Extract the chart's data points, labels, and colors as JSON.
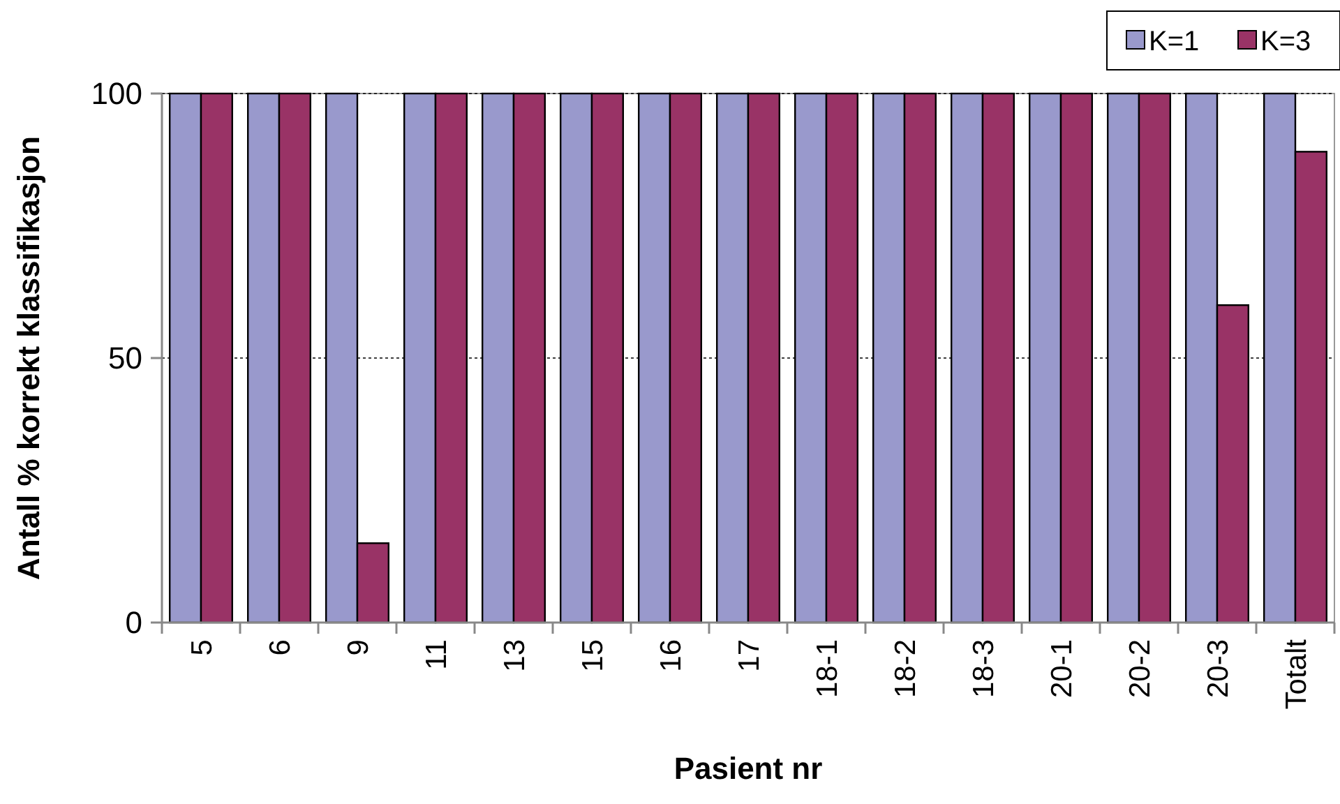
{
  "chart_data": {
    "type": "bar",
    "xlabel": "Pasient nr",
    "ylabel": "Antall % korrekt klassifikasjon",
    "categories": [
      "5",
      "6",
      "9",
      "11",
      "13",
      "15",
      "16",
      "17",
      "18-1",
      "18-2",
      "18-3",
      "20-1",
      "20-2",
      "20-3",
      "Totalt"
    ],
    "series": [
      {
        "name": "K=1",
        "color": "#9999cc",
        "values": [
          100,
          100,
          100,
          100,
          100,
          100,
          100,
          100,
          100,
          100,
          100,
          100,
          100,
          100,
          100
        ]
      },
      {
        "name": "K=3",
        "color": "#993366",
        "values": [
          100,
          100,
          15,
          100,
          100,
          100,
          100,
          100,
          100,
          100,
          100,
          100,
          100,
          60,
          89
        ]
      }
    ],
    "ylim": [
      0,
      100
    ],
    "yticks": [
      0,
      50,
      100
    ],
    "grid": "y",
    "legend": "top right"
  }
}
